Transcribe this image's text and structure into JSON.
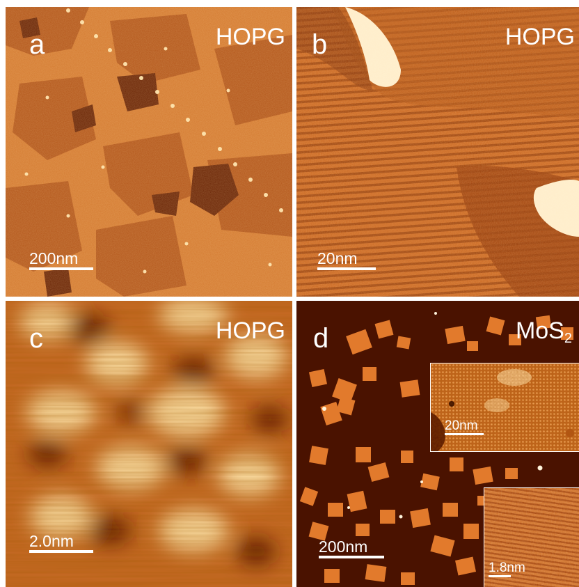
{
  "panels": {
    "a": {
      "letter": "a",
      "material": "HOPG",
      "scale": "200nm"
    },
    "b": {
      "letter": "b",
      "material": "HOPG",
      "scale": "20nm"
    },
    "c": {
      "letter": "c",
      "material": "HOPG",
      "scale": "2.0nm"
    },
    "d": {
      "letter": "d",
      "material": "MoS",
      "material_sub": "2",
      "scale": "200nm",
      "inset_top_scale": "20nm",
      "inset_bottom_scale": "1.8nm"
    }
  },
  "colors": {
    "high": "#ffe9b0",
    "mid": "#d9731e",
    "low": "#5a1a00",
    "background": "#ffffff"
  }
}
